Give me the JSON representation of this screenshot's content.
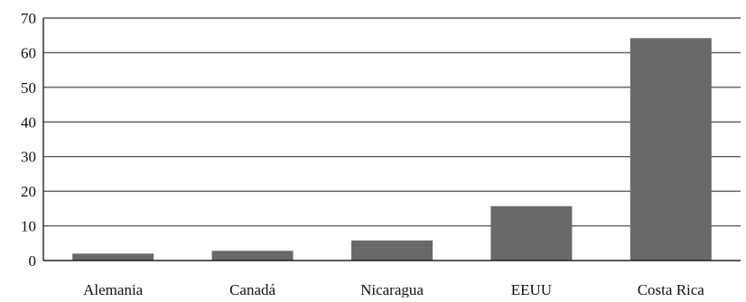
{
  "chart_data": {
    "type": "bar",
    "title": "",
    "xlabel": "",
    "ylabel": "",
    "categories": [
      "Alemania",
      "Canadá",
      "Nicaragua",
      "EEUU",
      "Costa Rica"
    ],
    "values": [
      2,
      2.8,
      5.8,
      15.7,
      64.2
    ],
    "ylim": [
      0,
      70
    ],
    "yticks": [
      "0",
      "10",
      "20",
      "30",
      "40",
      "50",
      "60",
      "70"
    ],
    "grid": true,
    "legend": "none",
    "colors": {
      "bar": "#69686b",
      "grid": "#5a5a5a",
      "axis": "#222222",
      "text": "#111111"
    }
  }
}
